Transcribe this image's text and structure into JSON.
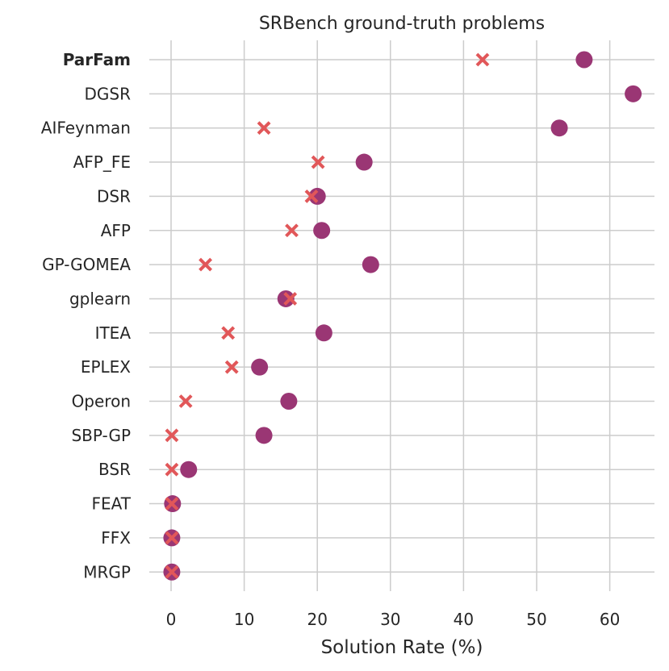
{
  "chart_data": {
    "type": "scatter",
    "title": "SRBench ground-truth problems",
    "xlabel": "Solution Rate (%)",
    "ylabel": "",
    "xlim": [
      -4,
      66
    ],
    "x_ticks": [
      "0",
      "10",
      "20",
      "30",
      "40",
      "50",
      "60"
    ],
    "grid": true,
    "categories": [
      "ParFam",
      "DGSR",
      "AIFeynman",
      "AFP_FE",
      "DSR",
      "AFP",
      "GP-GOMEA",
      "gplearn",
      "ITEA",
      "EPLEX",
      "Operon",
      "SBP-GP",
      "BSR",
      "FEAT",
      "FFX",
      "MRGP"
    ],
    "highlighted_category": "ParFam",
    "series": [
      {
        "name": "circle",
        "marker": "circle",
        "color": "#9a3674",
        "values": [
          56.5,
          63.2,
          53.1,
          26.4,
          20.0,
          20.6,
          27.3,
          15.7,
          20.9,
          12.1,
          16.1,
          12.7,
          2.4,
          0.2,
          0.1,
          0.1
        ]
      },
      {
        "name": "cross",
        "marker": "x",
        "color": "#e15759",
        "values": [
          42.6,
          null,
          12.7,
          20.1,
          19.2,
          16.5,
          4.7,
          16.3,
          7.8,
          8.3,
          2.0,
          0.1,
          0.1,
          0.1,
          0.1,
          0.1
        ]
      }
    ]
  }
}
